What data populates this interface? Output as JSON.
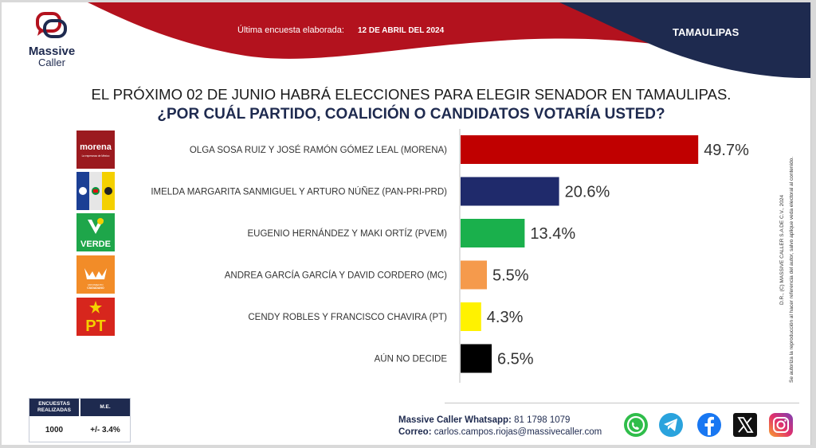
{
  "brand": {
    "name_line1": "Massive",
    "name_line2": "Caller"
  },
  "header": {
    "survey_label": "Última encuesta elaborada:",
    "survey_date": "12 DE ABRIL DEL 2024",
    "state": "TAMAULIPAS",
    "colors": {
      "red": "#b3121e",
      "navy": "#1e2a4f"
    }
  },
  "question": {
    "line1": "EL PRÓXIMO 02 DE JUNIO HABRÁ ELECCIONES PARA ELEGIR SENADOR EN TAMAULIPAS.",
    "line2": "¿POR CUÁL PARTIDO, COALICIÓN O CANDIDATOS VOTARÍA USTED?"
  },
  "party_logos": [
    {
      "icon": "morena-logo",
      "text": "morena",
      "subtext": "La esperanza de México"
    },
    {
      "icon": "pan-pri-prd-logo",
      "text": ""
    },
    {
      "icon": "pvem-logo",
      "text": "VERDE"
    },
    {
      "icon": "mc-logo",
      "text": "MOVIMIENTO CIUDADANO"
    },
    {
      "icon": "pt-logo",
      "text": "PT"
    },
    {
      "icon": "none",
      "text": ""
    }
  ],
  "chart_data": {
    "type": "bar",
    "orientation": "horizontal",
    "categories": [
      "OLGA SOSA RUIZ Y JOSÉ RAMÓN GÓMEZ LEAL (MORENA)",
      "IMELDA MARGARITA SANMIGUEL Y ARTURO NÚÑEZ (PAN-PRI-PRD)",
      "EUGENIO HERNÁNDEZ  Y MAKI ORTÍZ (PVEM)",
      "ANDREA GARCÍA GARCÍA  Y DAVID CORDERO (MC)",
      "CENDY ROBLES Y FRANCISCO CHAVIRA (PT)",
      "AÚN NO DECIDE"
    ],
    "values": [
      49.7,
      20.6,
      13.4,
      5.5,
      4.3,
      6.5
    ],
    "value_labels": [
      "49.7%",
      "20.6%",
      "13.4%",
      "5.5%",
      "4.3%",
      "6.5%"
    ],
    "colors": [
      "#c00000",
      "#1f2a6b",
      "#1ab04c",
      "#f59a4c",
      "#fff200",
      "#000000"
    ],
    "xlim": [
      0,
      55
    ]
  },
  "sample_table": {
    "header_surveys": "ENCUESTAS REALIZADAS",
    "header_me": "M.E.",
    "surveys": "1000",
    "me": "+/- 3.4%"
  },
  "contact": {
    "whatsapp_label": "Massive Caller Whatsapp:",
    "whatsapp_number": "81 1798 1079",
    "email_label": "Correo:",
    "email": "carlos.campos.riojas@massivecaller.com"
  },
  "social_icons": [
    "whatsapp-icon",
    "telegram-icon",
    "facebook-icon",
    "x-icon",
    "instagram-icon"
  ],
  "legal": {
    "line1": "D.R., (C) MASSIVE CALLER S.A DE C.V., 2024",
    "line2": "Se autoriza la reproducción al hacer referencia del autor, salvo aplique veda electoral al contenido."
  }
}
